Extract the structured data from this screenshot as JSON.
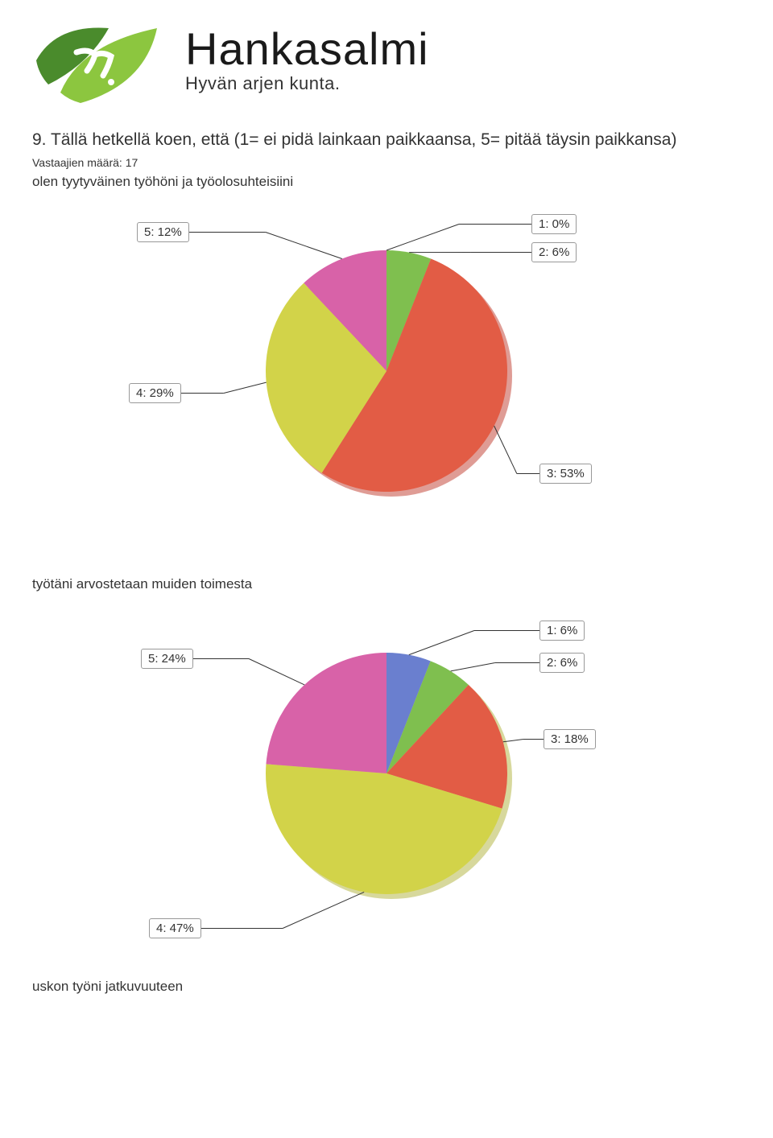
{
  "logo": {
    "name": "Hankasalmi",
    "tagline": "Hyvän arjen kunta.",
    "leaf_dark": "#4a8b2c",
    "leaf_light": "#8cc63f"
  },
  "question": {
    "title": "9. Tällä hetkellä koen, että (1= ei pidä lainkaan paikkaansa, 5= pitää täysin paikkansa)",
    "respondents": "Vastaajien määrä: 17"
  },
  "chart1": {
    "type": "pie",
    "title": "olen tyytyväinen työhöni ja työolosuhteisiini",
    "radius": 150,
    "background": "#ffffff",
    "shadow_color": "#c03a2b",
    "segments": [
      {
        "label": "1: 0%",
        "value": 0,
        "color": "#6a7fcf"
      },
      {
        "label": "2: 6%",
        "value": 6,
        "color": "#7fbf4f"
      },
      {
        "label": "3: 53%",
        "value": 53,
        "color": "#e25c45"
      },
      {
        "label": "4: 29%",
        "value": 29,
        "color": "#d2d349"
      },
      {
        "label": "5: 12%",
        "value": 12,
        "color": "#d862a8"
      }
    ],
    "callout_font_size": 15,
    "callout_border_color": "#999999",
    "callout_text_color": "#333333"
  },
  "chart2": {
    "type": "pie",
    "title": "työtäni arvostetaan muiden toimesta",
    "radius": 150,
    "background": "#ffffff",
    "shadow_color": "#b0b13a",
    "segments": [
      {
        "label": "1: 6%",
        "value": 6,
        "color": "#6a7fcf"
      },
      {
        "label": "2: 6%",
        "value": 6,
        "color": "#7fbf4f"
      },
      {
        "label": "3: 18%",
        "value": 18,
        "color": "#e25c45"
      },
      {
        "label": "4: 47%",
        "value": 47,
        "color": "#d2d349"
      },
      {
        "label": "5: 24%",
        "value": 24,
        "color": "#d862a8"
      }
    ],
    "callout_font_size": 15,
    "callout_border_color": "#999999",
    "callout_text_color": "#333333"
  },
  "footer_sub": "uskon työni jatkuvuuteen"
}
